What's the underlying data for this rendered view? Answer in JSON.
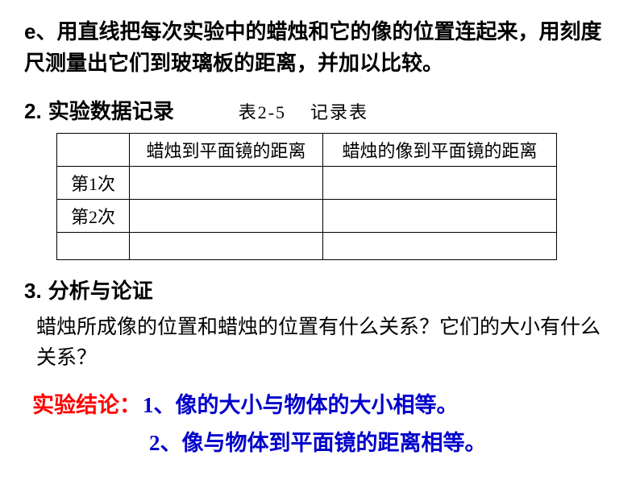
{
  "intro": {
    "label": "e、",
    "text": "用直线把每次实验中的蜡烛和它的像的位置连起来，用刻度尺测量出它们到玻璃板的距离，并加以比较。"
  },
  "section2": {
    "num": "2.",
    "title": "实验数据记录",
    "table_caption_left": "表2-5",
    "table_caption_right": "记录表",
    "headers": {
      "trial": "",
      "col1": "蜡烛到平面镜的距离",
      "col2": "蜡烛的像到平面镜的距离"
    },
    "rows": [
      {
        "trial": "第1次",
        "c1": "",
        "c2": ""
      },
      {
        "trial": "第2次",
        "c1": "",
        "c2": ""
      },
      {
        "trial": "",
        "c1": "",
        "c2": ""
      }
    ]
  },
  "section3": {
    "num": "3.",
    "title": "分析与论证",
    "question": "蜡烛所成像的位置和蜡烛的位置有什么关系？它们的大小有什么关系？"
  },
  "conclusion": {
    "label": "实验结论：",
    "line1": "1、像的大小与物体的大小相等。",
    "line2": "2、像与物体到平面镜的距离相等。"
  }
}
